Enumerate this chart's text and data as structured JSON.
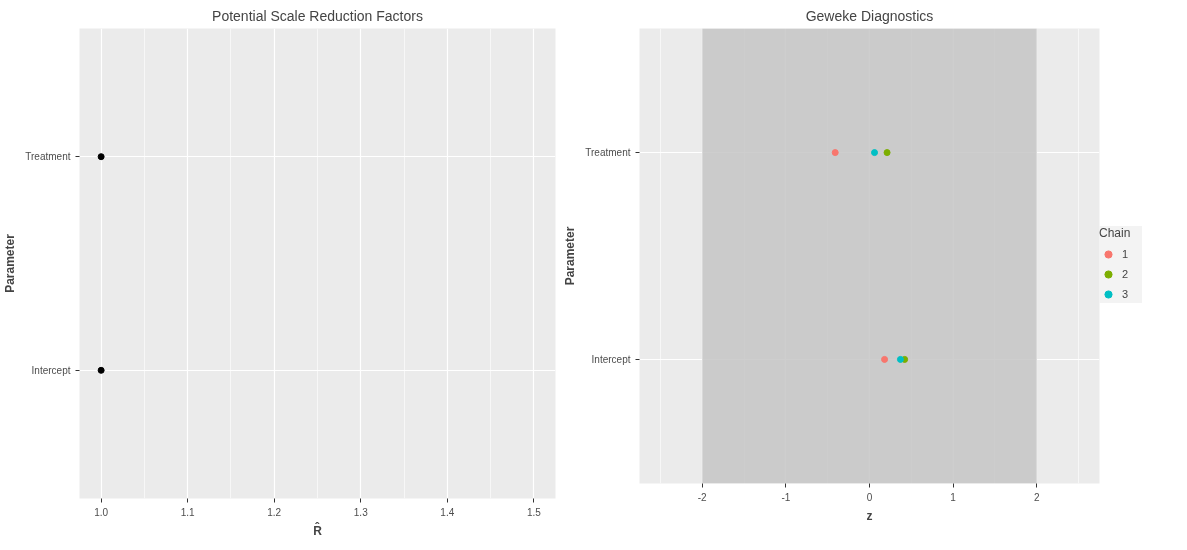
{
  "chart_data": [
    {
      "type": "scatter",
      "title": "Potential Scale Reduction Factors",
      "xlabel": "R̂",
      "ylabel": "Parameter",
      "orientation": "horizontal",
      "categories": [
        "Treatment",
        "Intercept"
      ],
      "series": [
        {
          "color": "#000000",
          "values": [
            1.0,
            1.0
          ]
        }
      ],
      "xlim": [
        0.975,
        1.525
      ],
      "xticks": [
        {
          "value": 1,
          "label": "1.0"
        },
        1.1,
        1.2,
        1.3,
        1.4,
        1.5
      ],
      "grid": true,
      "marker": "circle"
    },
    {
      "type": "scatter",
      "title": "Geweke Diagnostics",
      "xlabel": "z",
      "ylabel": "Parameter",
      "orientation": "horizontal",
      "categories": [
        "Treatment",
        "Intercept"
      ],
      "legend_title": "Chain",
      "series": [
        {
          "name": "1",
          "color": "#f8766d",
          "values": [
            -0.41,
            0.18
          ]
        },
        {
          "name": "2",
          "color": "#7cae00",
          "values": [
            0.21,
            0.42
          ]
        },
        {
          "name": "3",
          "color": "#00bfc4",
          "values": [
            0.06,
            0.37
          ]
        }
      ],
      "bands": [
        {
          "axis": "x",
          "from": -2,
          "to": 2,
          "color": "#c6c6c6"
        }
      ],
      "xlim": [
        -2.75,
        2.75
      ],
      "xticks": [
        -2,
        -1,
        0,
        1,
        2
      ],
      "grid": true,
      "legend": "right",
      "marker": "circle"
    }
  ]
}
